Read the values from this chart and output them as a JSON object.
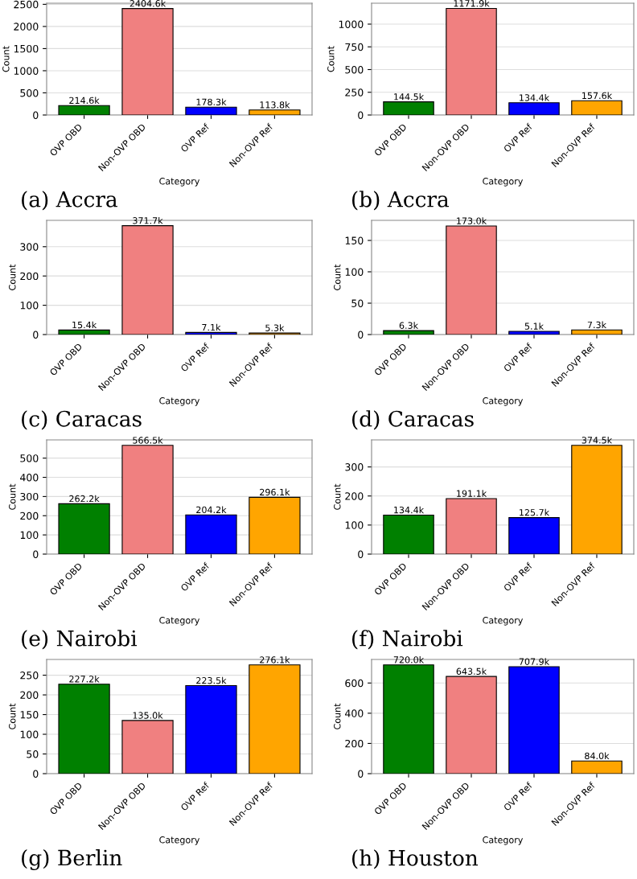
{
  "chart_data": [
    {
      "type": "bar",
      "title": "(a) Accra",
      "xlabel": "Category",
      "ylabel": "Count",
      "categories": [
        "OVP OBD",
        "Non-OVP OBD",
        "OVP Ref",
        "Non-OVP Ref"
      ],
      "values": [
        214.6,
        2404.6,
        178.3,
        113.8
      ],
      "value_labels": [
        "214.6k",
        "2404.6k",
        "178.3k",
        "113.8k"
      ],
      "colors": [
        "#008000",
        "#f08080",
        "#0000ff",
        "#ffa500"
      ],
      "ylim": [
        0,
        2525
      ],
      "yticks": [
        0,
        500,
        1000,
        1500,
        2000,
        2500
      ],
      "grid": "y"
    },
    {
      "type": "bar",
      "title": "(b) Accra",
      "xlabel": "Category",
      "ylabel": "Count",
      "categories": [
        "OVP OBD",
        "Non-OVP OBD",
        "OVP Ref",
        "Non-OVP Ref"
      ],
      "values": [
        144.5,
        1171.9,
        134.4,
        157.6
      ],
      "value_labels": [
        "144.5k",
        "1171.9k",
        "134.4k",
        "157.6k"
      ],
      "colors": [
        "#008000",
        "#f08080",
        "#0000ff",
        "#ffa500"
      ],
      "ylim": [
        0,
        1230
      ],
      "yticks": [
        0,
        250,
        500,
        750,
        1000
      ],
      "grid": "y"
    },
    {
      "type": "bar",
      "title": "(c) Caracas",
      "xlabel": "Category",
      "ylabel": "Count",
      "categories": [
        "OVP OBD",
        "Non-OVP OBD",
        "OVP Ref",
        "Non-OVP Ref"
      ],
      "values": [
        15.4,
        371.7,
        7.1,
        5.3
      ],
      "value_labels": [
        "15.4k",
        "371.7k",
        "7.1k",
        "5.3k"
      ],
      "colors": [
        "#008000",
        "#f08080",
        "#0000ff",
        "#ffa500"
      ],
      "ylim": [
        0,
        390
      ],
      "yticks": [
        0,
        100,
        200,
        300
      ],
      "grid": "y"
    },
    {
      "type": "bar",
      "title": "(d) Caracas",
      "xlabel": "Category",
      "ylabel": "Count",
      "categories": [
        "OVP OBD",
        "Non-OVP OBD",
        "OVP Ref",
        "Non-OVP Ref"
      ],
      "values": [
        6.3,
        173.0,
        5.1,
        7.3
      ],
      "value_labels": [
        "6.3k",
        "173.0k",
        "5.1k",
        "7.3k"
      ],
      "colors": [
        "#008000",
        "#f08080",
        "#0000ff",
        "#ffa500"
      ],
      "ylim": [
        0,
        182
      ],
      "yticks": [
        0,
        50,
        100,
        150
      ],
      "grid": "y"
    },
    {
      "type": "bar",
      "title": "(e) Nairobi",
      "xlabel": "Category",
      "ylabel": "Count",
      "categories": [
        "OVP OBD",
        "Non-OVP OBD",
        "OVP Ref",
        "Non-OVP Ref"
      ],
      "values": [
        262.2,
        566.5,
        204.2,
        296.1
      ],
      "value_labels": [
        "262.2k",
        "566.5k",
        "204.2k",
        "296.1k"
      ],
      "colors": [
        "#008000",
        "#f08080",
        "#0000ff",
        "#ffa500"
      ],
      "ylim": [
        0,
        595
      ],
      "yticks": [
        0,
        100,
        200,
        300,
        400,
        500
      ],
      "grid": "y"
    },
    {
      "type": "bar",
      "title": "(f) Nairobi",
      "xlabel": "Category",
      "ylabel": "Count",
      "categories": [
        "OVP OBD",
        "Non-OVP OBD",
        "OVP Ref",
        "Non-OVP Ref"
      ],
      "values": [
        134.4,
        191.1,
        125.7,
        374.5
      ],
      "value_labels": [
        "134.4k",
        "191.1k",
        "125.7k",
        "374.5k"
      ],
      "colors": [
        "#008000",
        "#f08080",
        "#0000ff",
        "#ffa500"
      ],
      "ylim": [
        0,
        393
      ],
      "yticks": [
        0,
        100,
        200,
        300
      ],
      "grid": "y"
    },
    {
      "type": "bar",
      "title": "(g) Berlin",
      "xlabel": "Category",
      "ylabel": "Count",
      "categories": [
        "OVP OBD",
        "Non-OVP OBD",
        "OVP Ref",
        "Non-OVP Ref"
      ],
      "values": [
        227.2,
        135.0,
        223.5,
        276.1
      ],
      "value_labels": [
        "227.2k",
        "135.0k",
        "223.5k",
        "276.1k"
      ],
      "colors": [
        "#008000",
        "#f08080",
        "#0000ff",
        "#ffa500"
      ],
      "ylim": [
        0,
        290
      ],
      "yticks": [
        0,
        50,
        100,
        150,
        200,
        250
      ],
      "grid": "y"
    },
    {
      "type": "bar",
      "title": "(h) Houston",
      "xlabel": "Category",
      "ylabel": "Count",
      "categories": [
        "OVP OBD",
        "Non-OVP OBD",
        "OVP Ref",
        "Non-OVP Ref"
      ],
      "values": [
        720.0,
        643.5,
        707.9,
        84.0
      ],
      "value_labels": [
        "720.0k",
        "643.5k",
        "707.9k",
        "84.0k"
      ],
      "colors": [
        "#008000",
        "#f08080",
        "#0000ff",
        "#ffa500"
      ],
      "ylim": [
        0,
        756
      ],
      "yticks": [
        0,
        200,
        400,
        600
      ],
      "grid": "y"
    }
  ]
}
